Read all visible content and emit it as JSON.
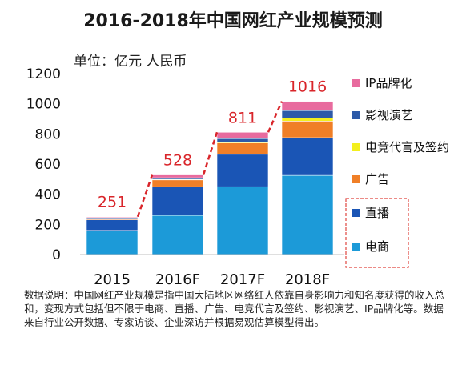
{
  "title": "2016-2018年中国网红产业规模预测",
  "unit_label": "单位：亿元 人民币",
  "note": "数据说明：中国网红产业规模是指中国大陆地区网络红人依靠自身影响力和知名度获得的收入总和，变现方式包括但不限于电商、直播、广告、电竞代言及签约、影视演艺、IP品牌化等。数据来自行业公开数据、专家访谈、企业深访并根据易观估算模型得出。",
  "chart_data": {
    "type": "bar",
    "stacked": true,
    "categories": [
      "2015",
      "2016F",
      "2017F",
      "2018F"
    ],
    "ylim": [
      0,
      1200
    ],
    "yticks": [
      0,
      200,
      400,
      600,
      800,
      1000,
      1200
    ],
    "totals": [
      251,
      528,
      811,
      1016
    ],
    "series": [
      {
        "name": "电商",
        "color": "#1c9ad8",
        "values": [
          160,
          260,
          450,
          525
        ]
      },
      {
        "name": "直播",
        "color": "#1a55b5",
        "values": [
          70,
          190,
          215,
          250
        ]
      },
      {
        "name": "广告",
        "color": "#f07f27",
        "values": [
          8,
          45,
          75,
          110
        ]
      },
      {
        "name": "电竞代言及签约",
        "color": "#f3ef1e",
        "values": [
          2,
          4,
          7,
          20
        ]
      },
      {
        "name": "影视演艺",
        "color": "#2d5aa8",
        "values": [
          6,
          10,
          22,
          50
        ]
      },
      {
        "name": "IP品牌化",
        "color": "#e86b9e",
        "values": [
          5,
          19,
          42,
          61
        ]
      }
    ],
    "legend_order": [
      "IP品牌化",
      "影视演艺",
      "电竞代言及签约",
      "广告",
      "直播",
      "电商"
    ],
    "highlighted_legend": [
      "直播",
      "电商"
    ],
    "total_label_color": "#d9252a",
    "trend_line_color": "#d9252a"
  }
}
